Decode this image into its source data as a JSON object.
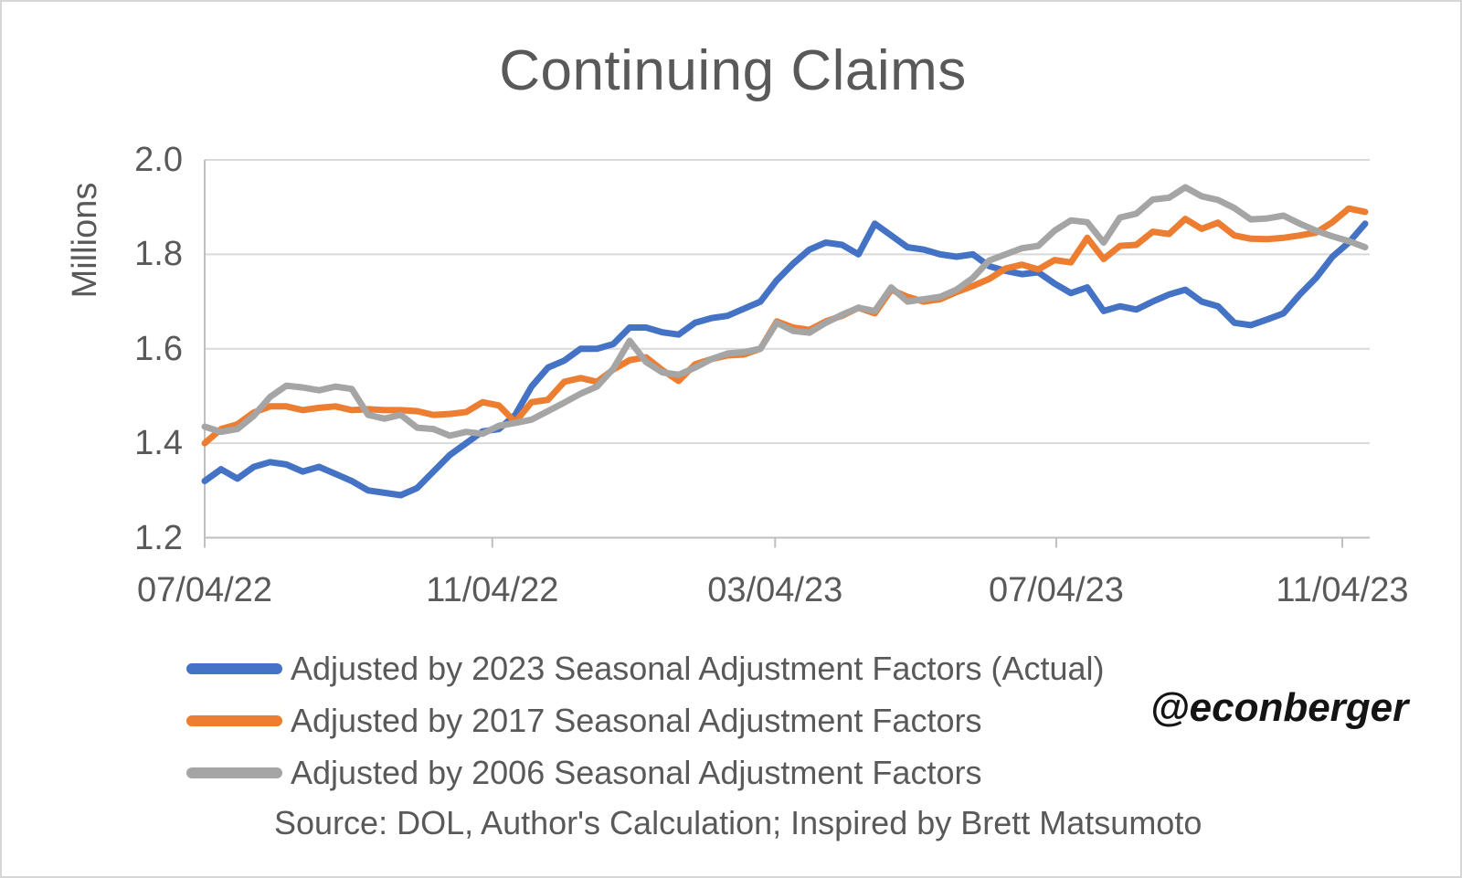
{
  "title": "Continuing Claims",
  "source_note": "Source: DOL, Author's Calculation; Inspired by Brett Matsumoto",
  "watermark": "@econberger",
  "colors": {
    "blue_series": "#4472C4",
    "orange_series": "#ED7D31",
    "gray_series": "#A5A5A5",
    "gridline": "#D9D9D9",
    "axis_line": "#BFBFBF",
    "text": "#595959",
    "watermark_text": "#141414",
    "frame_border": "#D6D6D6"
  },
  "chart_data": {
    "type": "line",
    "title": "Continuing Claims",
    "xlabel": "",
    "ylabel": "Millions",
    "ylim": [
      1.2,
      2.0
    ],
    "grid": "horizontal",
    "legend_position": "bottom-left",
    "x_unit": "weekly observations",
    "y_ticks": [
      {
        "label": "2.0",
        "value": 2.0
      },
      {
        "label": "1.8",
        "value": 1.8
      },
      {
        "label": "1.6",
        "value": 1.6
      },
      {
        "label": "1.4",
        "value": 1.4
      },
      {
        "label": "1.2",
        "value": 1.2
      }
    ],
    "x_ticks": [
      {
        "label": "07/04/22",
        "week": 0
      },
      {
        "label": "11/04/22",
        "week": 17.6
      },
      {
        "label": "03/04/23",
        "week": 34.9
      },
      {
        "label": "07/04/23",
        "week": 52.1
      },
      {
        "label": "11/04/23",
        "week": 69.6
      }
    ],
    "series": [
      {
        "name": "Adjusted by 2023 Seasonal Adjustment Factors (Actual)",
        "color": "#4472C4",
        "values": [
          1.32,
          1.345,
          1.325,
          1.35,
          1.36,
          1.355,
          1.34,
          1.35,
          1.335,
          1.32,
          1.3,
          1.295,
          1.29,
          1.305,
          1.34,
          1.375,
          1.4,
          1.425,
          1.43,
          1.46,
          1.52,
          1.56,
          1.575,
          1.6,
          1.6,
          1.61,
          1.645,
          1.645,
          1.635,
          1.63,
          1.655,
          1.665,
          1.67,
          1.685,
          1.7,
          1.745,
          1.78,
          1.81,
          1.825,
          1.82,
          1.8,
          1.865,
          1.84,
          1.815,
          1.81,
          1.8,
          1.795,
          1.8,
          1.775,
          1.765,
          1.758,
          1.762,
          1.738,
          1.718,
          1.73,
          1.68,
          1.69,
          1.683,
          1.7,
          1.715,
          1.725,
          1.7,
          1.69,
          1.655,
          1.65,
          1.662,
          1.675,
          1.715,
          1.75,
          1.795,
          1.825,
          1.865
        ]
      },
      {
        "name": "Adjusted by 2017 Seasonal Adjustment Factors",
        "color": "#ED7D31",
        "values": [
          1.4,
          1.43,
          1.44,
          1.465,
          1.478,
          1.478,
          1.47,
          1.475,
          1.478,
          1.47,
          1.472,
          1.47,
          1.47,
          1.468,
          1.46,
          1.462,
          1.466,
          1.487,
          1.48,
          1.445,
          1.487,
          1.492,
          1.53,
          1.538,
          1.53,
          1.556,
          1.576,
          1.582,
          1.555,
          1.532,
          1.567,
          1.578,
          1.586,
          1.588,
          1.6,
          1.658,
          1.645,
          1.64,
          1.658,
          1.67,
          1.687,
          1.675,
          1.725,
          1.71,
          1.7,
          1.705,
          1.72,
          1.733,
          1.748,
          1.77,
          1.778,
          1.768,
          1.788,
          1.783,
          1.835,
          1.79,
          1.818,
          1.82,
          1.848,
          1.843,
          1.875,
          1.854,
          1.867,
          1.84,
          1.833,
          1.832,
          1.835,
          1.84,
          1.846,
          1.868,
          1.897,
          1.89
        ]
      },
      {
        "name": "Adjusted by 2006 Seasonal Adjustment Factors",
        "color": "#A5A5A5",
        "values": [
          1.435,
          1.424,
          1.43,
          1.458,
          1.498,
          1.522,
          1.518,
          1.512,
          1.52,
          1.515,
          1.46,
          1.452,
          1.46,
          1.433,
          1.43,
          1.416,
          1.424,
          1.42,
          1.437,
          1.443,
          1.45,
          1.468,
          1.486,
          1.505,
          1.52,
          1.558,
          1.617,
          1.572,
          1.55,
          1.545,
          1.56,
          1.578,
          1.59,
          1.593,
          1.6,
          1.655,
          1.638,
          1.634,
          1.655,
          1.672,
          1.687,
          1.68,
          1.73,
          1.7,
          1.705,
          1.71,
          1.725,
          1.75,
          1.787,
          1.8,
          1.813,
          1.818,
          1.85,
          1.872,
          1.868,
          1.825,
          1.878,
          1.886,
          1.916,
          1.92,
          1.942,
          1.923,
          1.915,
          1.898,
          1.874,
          1.876,
          1.882,
          1.865,
          1.85,
          1.838,
          1.828,
          1.815
        ]
      }
    ]
  }
}
